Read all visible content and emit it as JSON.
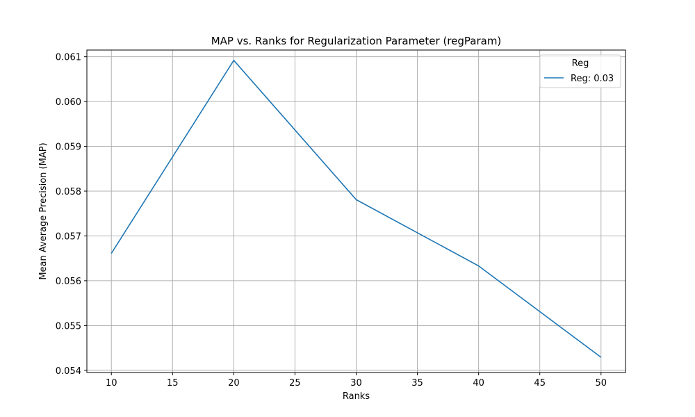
{
  "chart_data": {
    "type": "line",
    "title": "MAP vs. Ranks for Regularization Parameter (regParam)",
    "xlabel": "Ranks",
    "ylabel": "Mean Average Precision (MAP)",
    "x": [
      10,
      20,
      30,
      40,
      50
    ],
    "xlim": [
      8,
      52
    ],
    "ylim": [
      0.05395,
      0.06115
    ],
    "xticks": [
      10,
      15,
      20,
      25,
      30,
      35,
      40,
      45,
      50
    ],
    "yticks": [
      0.054,
      0.055,
      0.056,
      0.057,
      0.058,
      0.059,
      0.06,
      0.061
    ],
    "ytick_labels": [
      "0.054",
      "0.055",
      "0.056",
      "0.057",
      "0.058",
      "0.059",
      "0.060",
      "0.061"
    ],
    "grid": true,
    "legend": {
      "title": "Reg",
      "placement": "top-right"
    },
    "series": [
      {
        "name": "Reg: 0.03",
        "color": "#1f77b4",
        "values": [
          0.05661,
          0.06092,
          0.05781,
          0.05633,
          0.05429
        ]
      }
    ]
  }
}
